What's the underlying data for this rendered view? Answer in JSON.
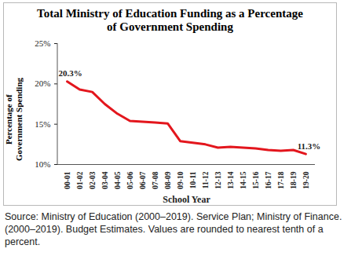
{
  "chart_data": {
    "type": "line",
    "title": "Total Ministry of Education  Funding  as a Percentage of Government  Spending",
    "x_label": "School Year",
    "y_label": "Percentage of Government Spending",
    "categories": [
      "00-01",
      "01-02",
      "02-03",
      "03-04",
      "04-05",
      "05-06",
      "06-07",
      "07-08",
      "08-09",
      "09-10",
      "10-11",
      "11-12",
      "12-13",
      "13-14",
      "14-15",
      "15-16",
      "16-17",
      "17-18",
      "18-19",
      "19-20"
    ],
    "values": [
      20.3,
      19.3,
      19.0,
      17.5,
      16.3,
      15.4,
      15.3,
      15.2,
      15.1,
      12.9,
      12.7,
      12.5,
      12.1,
      12.2,
      12.1,
      12.0,
      11.8,
      11.7,
      11.8,
      11.3
    ],
    "color": "#e3161d",
    "ylim": [
      10,
      25
    ],
    "yticks": [
      {
        "value": 10,
        "label": "10%"
      },
      {
        "value": 15,
        "label": "15%"
      },
      {
        "value": 20,
        "label": "20%"
      },
      {
        "value": 25,
        "label": "25%"
      }
    ],
    "annotations": [
      {
        "category": "00-01",
        "value": 20.3,
        "label": "20.3%"
      },
      {
        "category": "19-20",
        "value": 11.3,
        "label": "11.3%"
      }
    ],
    "caption": "Source: Ministry of Education (2000–2019). Service Plan; Ministry of Finance. (2000–2019). Budget Estimates. Values are rounded to nearest tenth of a percent."
  }
}
